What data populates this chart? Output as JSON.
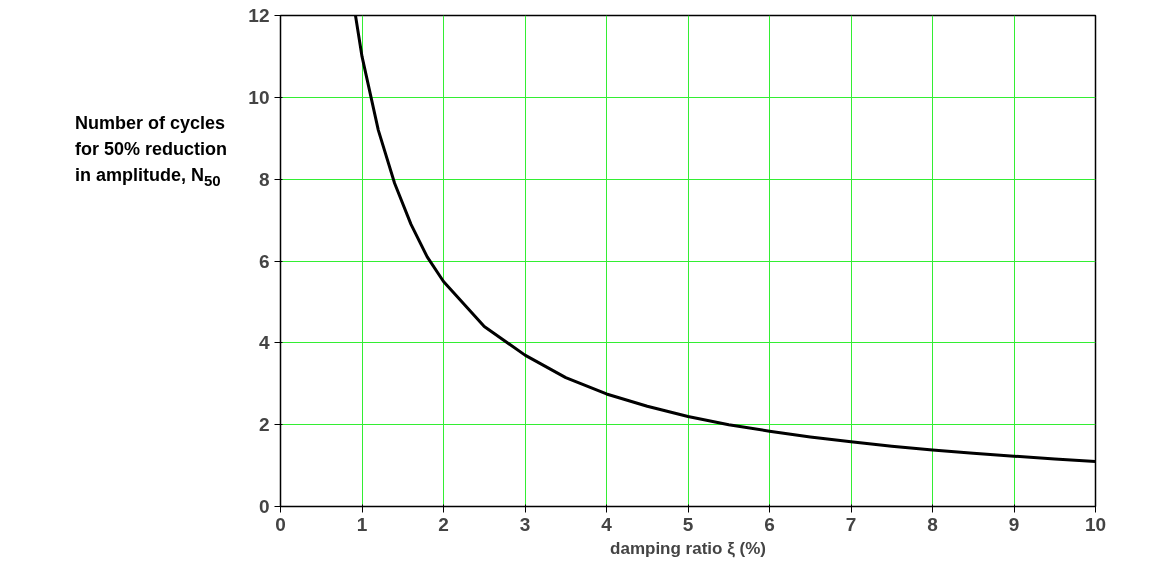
{
  "chart_data": {
    "type": "line",
    "xlabel": "damping ratio ξ (%)",
    "ylabel": "Number of cycles for 50% reduction in amplitude, N$_{50}$",
    "x": [
      0.92,
      1,
      1.2,
      1.4,
      1.6,
      1.8,
      2,
      2.5,
      3,
      3.5,
      4,
      4.5,
      5,
      5.5,
      6,
      6.5,
      7,
      7.5,
      8,
      8.5,
      9,
      9.5,
      10
    ],
    "series": [
      {
        "color": "#000000",
        "values": [
          12,
          11,
          9.2,
          7.9,
          6.9,
          6.1,
          5.5,
          4.4,
          3.7,
          3.15,
          2.75,
          2.45,
          2.2,
          2.0,
          1.84,
          1.7,
          1.58,
          1.47,
          1.38,
          1.3,
          1.23,
          1.16,
          1.1
        ]
      }
    ],
    "xlim": [
      0,
      10
    ],
    "ylim": [
      0,
      12
    ],
    "xticks": [
      0,
      1,
      2,
      3,
      4,
      5,
      6,
      7,
      8,
      9,
      10
    ],
    "yticks": [
      0,
      2,
      4,
      6,
      8,
      10,
      12
    ],
    "grid": true,
    "marker": "none",
    "line_style": "solid"
  }
}
